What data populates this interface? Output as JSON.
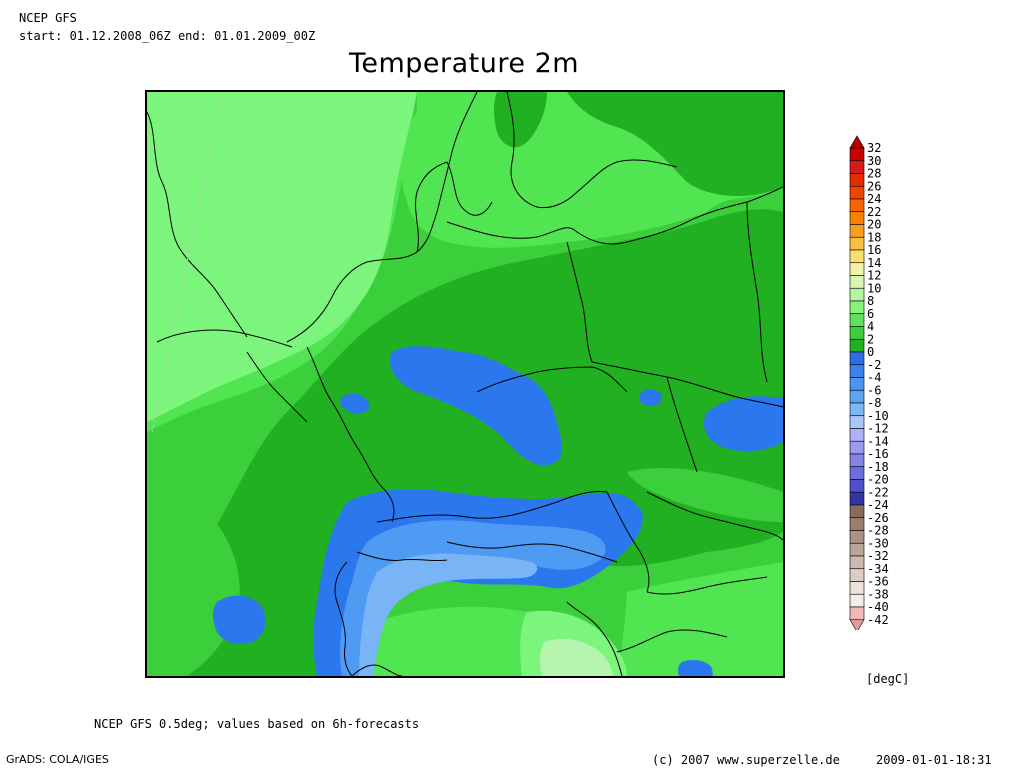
{
  "header": {
    "model": "NCEP GFS",
    "period": "start: 01.12.2008_06Z end: 01.01.2009_00Z",
    "title": "Temperature 2m"
  },
  "footer": {
    "source": "NCEP GFS 0.5deg; values based on 6h-forecasts",
    "software": "GrADS: COLA/IGES",
    "copyright": "(c) 2007 www.superzelle.de",
    "timestamp": "2009-01-01-18:31"
  },
  "legend": {
    "units": "[degC]",
    "labels": [
      "32",
      "30",
      "28",
      "26",
      "24",
      "22",
      "20",
      "18",
      "16",
      "14",
      "12",
      "10",
      "8",
      "6",
      "4",
      "2",
      "0",
      "-2",
      "-4",
      "-6",
      "-8",
      "-10",
      "-12",
      "-14",
      "-16",
      "-18",
      "-20",
      "-22",
      "-24",
      "-26",
      "-28",
      "-30",
      "-32",
      "-34",
      "-36",
      "-38",
      "-40",
      "-42"
    ],
    "colors": [
      "#b40000",
      "#c80000",
      "#d71a1a",
      "#e62a00",
      "#f04600",
      "#f56400",
      "#f78200",
      "#f7a020",
      "#f7c040",
      "#f7e070",
      "#f2f5a6",
      "#d8f5b4",
      "#b4f5a0",
      "#86f27a",
      "#5ce25c",
      "#3ccf3c",
      "#21b021",
      "#2b6fe6",
      "#3a82ee",
      "#4a94f2",
      "#5aa6f4",
      "#7ab8f6",
      "#a8c8f8",
      "#b0b0f4",
      "#9a9aee",
      "#8484e6",
      "#6e6ede",
      "#5050c8",
      "#3434a6",
      "#8a6a5a",
      "#9a7e70",
      "#aa9284",
      "#bba69a",
      "#ccbab0",
      "#dccec6",
      "#ebe2dc",
      "#f4ecea",
      "#f0b8b8",
      "#e89a9a"
    ]
  },
  "map_colors": {
    "lighter_green": "#7cf57c",
    "light_green": "#52e552",
    "mid_green": "#3ccf3c",
    "dark_green": "#21b021",
    "blue": "#2b77ee",
    "light_blue": "#4f9af2",
    "pale_blue": "#78b4f6",
    "pale_green": "#b6f5b0",
    "border": "#000000"
  }
}
